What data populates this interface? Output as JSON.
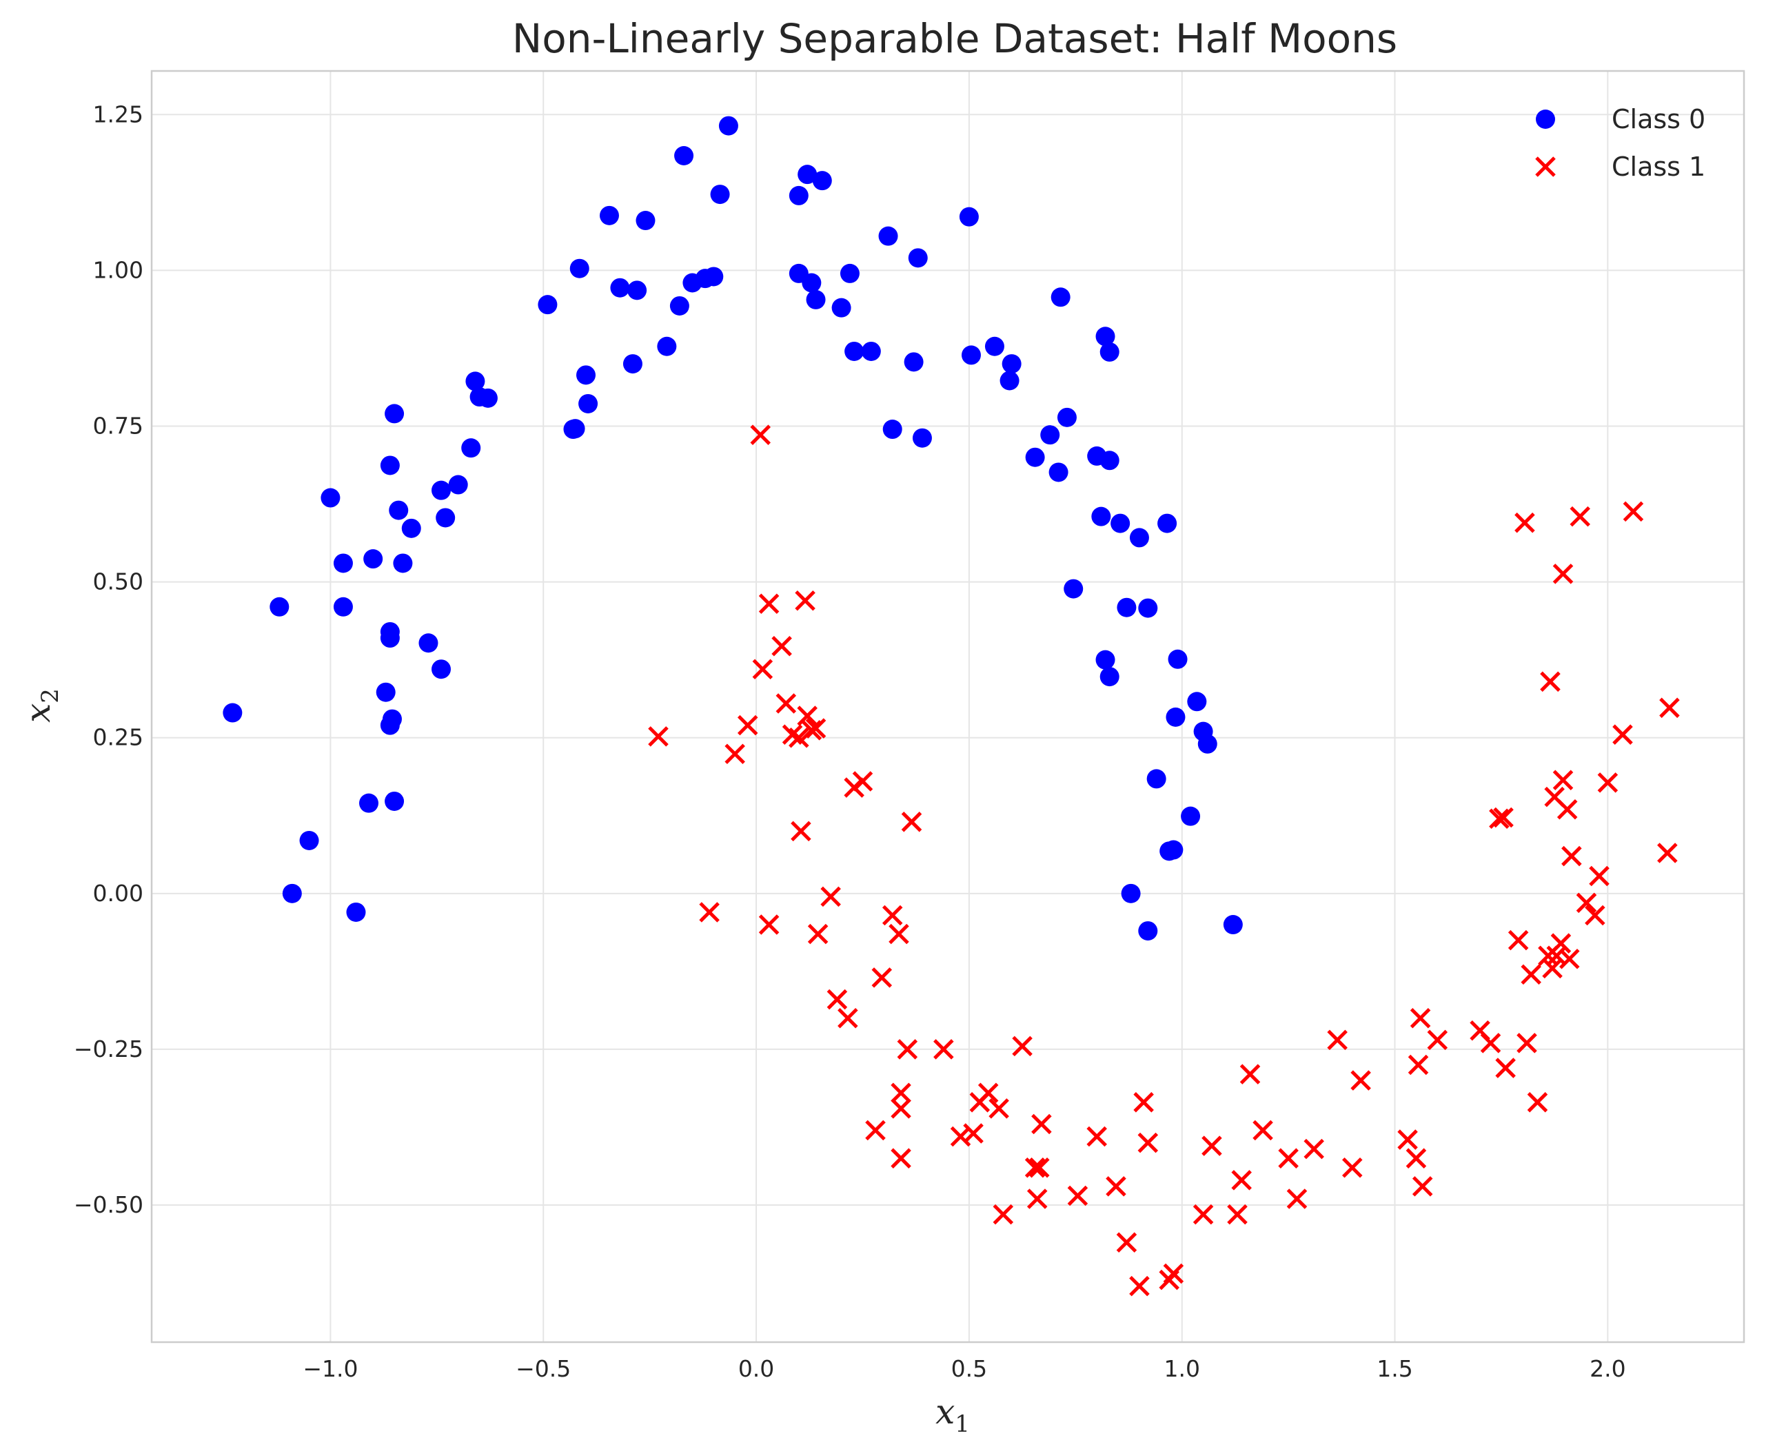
{
  "chart_data": {
    "type": "scatter",
    "title": "Non-Linearly Separable Dataset: Half Moons",
    "xlabel": "x",
    "xlabel_sub": "1",
    "ylabel": "x",
    "ylabel_sub": "2",
    "xlim": [
      -1.42,
      2.32
    ],
    "ylim": [
      -0.72,
      1.32
    ],
    "xticks": [
      -1.0,
      -0.5,
      0.0,
      0.5,
      1.0,
      1.5,
      2.0
    ],
    "xtick_labels": [
      "−1.0",
      "−0.5",
      "0.0",
      "0.5",
      "1.0",
      "1.5",
      "2.0"
    ],
    "yticks": [
      -0.5,
      -0.25,
      0.0,
      0.25,
      0.5,
      0.75,
      1.0,
      1.25
    ],
    "ytick_labels": [
      "−0.50",
      "−0.25",
      "0.00",
      "0.25",
      "0.50",
      "0.75",
      "1.00",
      "1.25"
    ],
    "grid": true,
    "legend_position": "top-right",
    "series": [
      {
        "name": "Class 0",
        "marker": "circle",
        "color": "#0000ff",
        "points": [
          [
            -1.23,
            0.29
          ],
          [
            -1.12,
            0.46
          ],
          [
            -1.09,
            0.0
          ],
          [
            -1.05,
            0.085
          ],
          [
            -1.0,
            0.635
          ],
          [
            -0.97,
            0.53
          ],
          [
            -0.97,
            0.46
          ],
          [
            -0.94,
            -0.03
          ],
          [
            -0.91,
            0.145
          ],
          [
            -0.9,
            0.537
          ],
          [
            -0.87,
            0.323
          ],
          [
            -0.86,
            0.687
          ],
          [
            -0.86,
            0.41
          ],
          [
            -0.86,
            0.42
          ],
          [
            -0.86,
            0.27
          ],
          [
            -0.855,
            0.28
          ],
          [
            -0.85,
            0.148
          ],
          [
            -0.85,
            0.77
          ],
          [
            -0.84,
            0.615
          ],
          [
            -0.83,
            0.53
          ],
          [
            -0.81,
            0.586
          ],
          [
            -0.77,
            0.402
          ],
          [
            -0.74,
            0.647
          ],
          [
            -0.74,
            0.36
          ],
          [
            -0.73,
            0.603
          ],
          [
            -0.7,
            0.656
          ],
          [
            -0.67,
            0.715
          ],
          [
            -0.66,
            0.822
          ],
          [
            -0.65,
            0.797
          ],
          [
            -0.63,
            0.795
          ],
          [
            -0.49,
            0.945
          ],
          [
            -0.43,
            0.745
          ],
          [
            -0.425,
            0.746
          ],
          [
            -0.415,
            1.003
          ],
          [
            -0.4,
            0.832
          ],
          [
            -0.395,
            0.786
          ],
          [
            -0.345,
            1.088
          ],
          [
            -0.32,
            0.972
          ],
          [
            -0.29,
            0.85
          ],
          [
            -0.28,
            0.968
          ],
          [
            -0.26,
            1.08
          ],
          [
            -0.21,
            0.878
          ],
          [
            -0.18,
            0.943
          ],
          [
            -0.17,
            1.184
          ],
          [
            -0.15,
            0.98
          ],
          [
            -0.12,
            0.987
          ],
          [
            -0.1,
            0.99
          ],
          [
            -0.085,
            1.122
          ],
          [
            -0.065,
            1.232
          ],
          [
            0.1,
            1.12
          ],
          [
            0.1,
            0.995
          ],
          [
            0.12,
            1.154
          ],
          [
            0.13,
            0.98
          ],
          [
            0.14,
            0.953
          ],
          [
            0.155,
            1.144
          ],
          [
            0.2,
            0.94
          ],
          [
            0.22,
            0.995
          ],
          [
            0.23,
            0.87
          ],
          [
            0.27,
            0.87
          ],
          [
            0.31,
            1.055
          ],
          [
            0.32,
            0.745
          ],
          [
            0.37,
            0.853
          ],
          [
            0.38,
            1.02
          ],
          [
            0.39,
            0.731
          ],
          [
            0.5,
            1.086
          ],
          [
            0.505,
            0.864
          ],
          [
            0.56,
            0.878
          ],
          [
            0.6,
            0.85
          ],
          [
            0.595,
            0.823
          ],
          [
            0.655,
            0.7
          ],
          [
            0.69,
            0.736
          ],
          [
            0.71,
            0.676
          ],
          [
            0.715,
            0.957
          ],
          [
            0.73,
            0.764
          ],
          [
            0.745,
            0.489
          ],
          [
            0.8,
            0.702
          ],
          [
            0.81,
            0.605
          ],
          [
            0.82,
            0.375
          ],
          [
            0.82,
            0.894
          ],
          [
            0.83,
            0.348
          ],
          [
            0.83,
            0.695
          ],
          [
            0.83,
            0.869
          ],
          [
            0.855,
            0.594
          ],
          [
            0.87,
            0.459
          ],
          [
            0.88,
            0.0
          ],
          [
            0.9,
            0.571
          ],
          [
            0.92,
            0.458
          ],
          [
            0.92,
            -0.06
          ],
          [
            0.94,
            0.184
          ],
          [
            0.965,
            0.594
          ],
          [
            0.97,
            0.068
          ],
          [
            0.98,
            0.07
          ],
          [
            0.985,
            0.283
          ],
          [
            0.99,
            0.376
          ],
          [
            1.02,
            0.124
          ],
          [
            1.035,
            0.308
          ],
          [
            1.05,
            0.26
          ],
          [
            1.06,
            0.24
          ],
          [
            1.12,
            -0.05
          ]
        ]
      },
      {
        "name": "Class 1",
        "marker": "x",
        "color": "#ff0000",
        "points": [
          [
            -0.23,
            0.252
          ],
          [
            -0.11,
            -0.03
          ],
          [
            -0.05,
            0.224
          ],
          [
            -0.02,
            0.27
          ],
          [
            0.01,
            0.736
          ],
          [
            0.015,
            0.36
          ],
          [
            0.03,
            0.465
          ],
          [
            0.03,
            -0.05
          ],
          [
            0.06,
            0.397
          ],
          [
            0.07,
            0.305
          ],
          [
            0.085,
            0.255
          ],
          [
            0.1,
            0.25
          ],
          [
            0.105,
            0.1
          ],
          [
            0.115,
            0.47
          ],
          [
            0.12,
            0.285
          ],
          [
            0.13,
            0.262
          ],
          [
            0.14,
            0.265
          ],
          [
            0.145,
            -0.065
          ],
          [
            0.175,
            -0.005
          ],
          [
            0.19,
            -0.17
          ],
          [
            0.215,
            -0.2
          ],
          [
            0.23,
            0.17
          ],
          [
            0.25,
            0.18
          ],
          [
            0.28,
            -0.38
          ],
          [
            0.295,
            -0.135
          ],
          [
            0.32,
            -0.035
          ],
          [
            0.335,
            -0.065
          ],
          [
            0.34,
            -0.32
          ],
          [
            0.34,
            -0.345
          ],
          [
            0.34,
            -0.425
          ],
          [
            0.355,
            -0.25
          ],
          [
            0.365,
            0.115
          ],
          [
            0.44,
            -0.25
          ],
          [
            0.48,
            -0.39
          ],
          [
            0.51,
            -0.385
          ],
          [
            0.525,
            -0.335
          ],
          [
            0.545,
            -0.32
          ],
          [
            0.57,
            -0.345
          ],
          [
            0.58,
            -0.515
          ],
          [
            0.625,
            -0.245
          ],
          [
            0.655,
            -0.44
          ],
          [
            0.66,
            -0.49
          ],
          [
            0.665,
            -0.44
          ],
          [
            0.67,
            -0.37
          ],
          [
            0.755,
            -0.485
          ],
          [
            0.8,
            -0.39
          ],
          [
            0.845,
            -0.47
          ],
          [
            0.87,
            -0.56
          ],
          [
            0.9,
            -0.63
          ],
          [
            0.91,
            -0.335
          ],
          [
            0.92,
            -0.4
          ],
          [
            0.97,
            -0.62
          ],
          [
            0.98,
            -0.61
          ],
          [
            1.05,
            -0.515
          ],
          [
            1.07,
            -0.405
          ],
          [
            1.13,
            -0.515
          ],
          [
            1.14,
            -0.46
          ],
          [
            1.16,
            -0.29
          ],
          [
            1.19,
            -0.38
          ],
          [
            1.25,
            -0.425
          ],
          [
            1.27,
            -0.49
          ],
          [
            1.31,
            -0.41
          ],
          [
            1.365,
            -0.235
          ],
          [
            1.4,
            -0.44
          ],
          [
            1.42,
            -0.3
          ],
          [
            1.53,
            -0.395
          ],
          [
            1.55,
            -0.425
          ],
          [
            1.555,
            -0.275
          ],
          [
            1.56,
            -0.2
          ],
          [
            1.565,
            -0.47
          ],
          [
            1.6,
            -0.235
          ],
          [
            1.7,
            -0.22
          ],
          [
            1.725,
            -0.24
          ],
          [
            1.745,
            0.12
          ],
          [
            1.755,
            0.122
          ],
          [
            1.76,
            -0.28
          ],
          [
            1.79,
            -0.075
          ],
          [
            1.805,
            0.595
          ],
          [
            1.81,
            -0.24
          ],
          [
            1.82,
            -0.13
          ],
          [
            1.835,
            -0.335
          ],
          [
            1.86,
            -0.1
          ],
          [
            1.865,
            0.34
          ],
          [
            1.87,
            -0.12
          ],
          [
            1.875,
            0.155
          ],
          [
            1.88,
            -0.1
          ],
          [
            1.89,
            -0.08
          ],
          [
            1.895,
            0.513
          ],
          [
            1.895,
            0.182
          ],
          [
            1.905,
            0.135
          ],
          [
            1.91,
            -0.105
          ],
          [
            1.915,
            0.06
          ],
          [
            1.935,
            0.605
          ],
          [
            1.95,
            -0.015
          ],
          [
            1.97,
            -0.035
          ],
          [
            1.98,
            0.028
          ],
          [
            2.0,
            0.178
          ],
          [
            2.035,
            0.255
          ],
          [
            2.06,
            0.613
          ],
          [
            2.14,
            0.065
          ],
          [
            2.145,
            0.298
          ]
        ]
      }
    ]
  }
}
